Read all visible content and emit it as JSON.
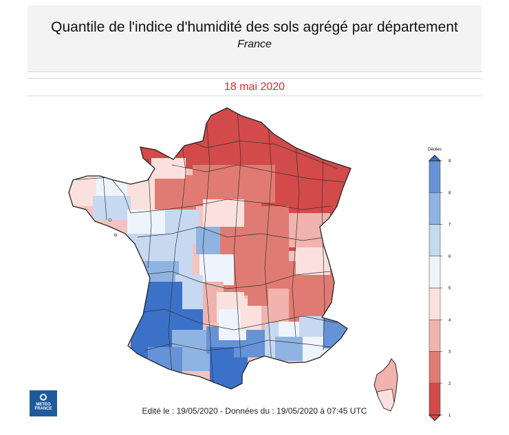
{
  "header": {
    "title": "Quantile de l'indice d'humidité des sols agrégé par département",
    "subtitle": "France"
  },
  "date_label": "18 mai 2020",
  "footer_text": "Edité le : 19/05/2020 - Données du : 19/05/2020 à 07:45 UTC",
  "logo": {
    "line1": "METEO",
    "line2": "FRANCE",
    "color": "#1f5a9c"
  },
  "legend": {
    "title": "Déciles",
    "ticks": [
      "1",
      "2",
      "3",
      "4",
      "5",
      "6",
      "7",
      "8",
      "9"
    ],
    "colors": [
      "#d24a4a",
      "#e07b73",
      "#f0b3ae",
      "#fbe1de",
      "#eef4fc",
      "#c6d9f1",
      "#8fb3e3",
      "#6692d6",
      "#3b71c8"
    ]
  },
  "colors": {
    "title_background": "#f3f3f3",
    "date_text": "#d42f2f",
    "dry": "#d24a4a",
    "wet": "#3b71c8"
  }
}
